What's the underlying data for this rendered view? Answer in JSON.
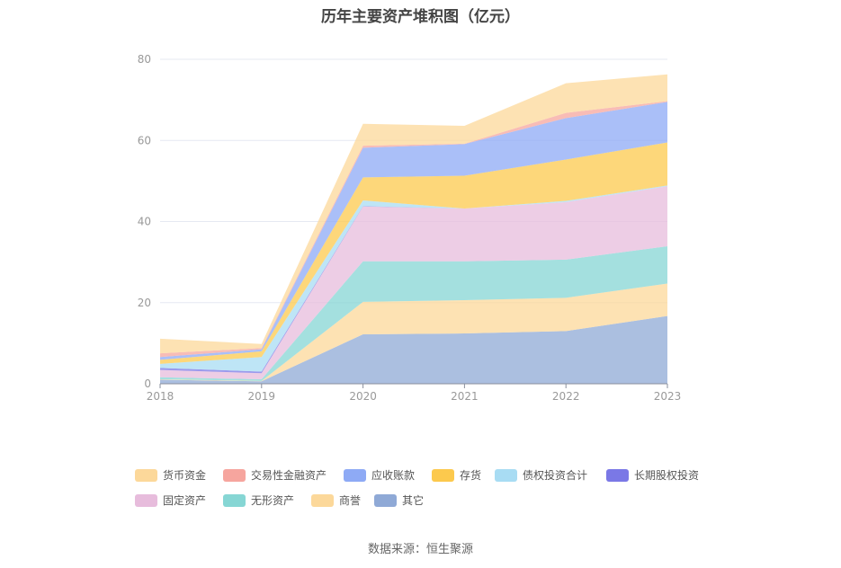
{
  "chart_data": {
    "type": "area",
    "stacked": true,
    "title": "历年主要资产堆积图（亿元）",
    "categories": [
      "2018",
      "2019",
      "2020",
      "2021",
      "2022",
      "2023"
    ],
    "ylim": [
      0,
      80
    ],
    "yticks": [
      0,
      20,
      40,
      60,
      80
    ],
    "grid": true,
    "legend_position": "bottom",
    "series": [
      {
        "name": "其它",
        "color": "#8fa9d6",
        "values": [
          1.0,
          0.6,
          12.2,
          12.4,
          13.0,
          16.7
        ]
      },
      {
        "name": "商誉",
        "color": "#fcd89a",
        "values": [
          0.1,
          0.1,
          8.0,
          8.2,
          8.2,
          8.0
        ]
      },
      {
        "name": "无形资产",
        "color": "#86d6d4",
        "values": [
          0.5,
          0.4,
          10.0,
          9.6,
          9.4,
          9.2
        ]
      },
      {
        "name": "固定资产",
        "color": "#e7bcdc",
        "values": [
          1.8,
          1.5,
          13.5,
          13.0,
          14.2,
          14.8
        ]
      },
      {
        "name": "长期股权投资",
        "color": "#7a78e6",
        "values": [
          0.5,
          0.4,
          0.1,
          0.0,
          0.0,
          0.0
        ]
      },
      {
        "name": "债权投资合计",
        "color": "#a8dcf3",
        "values": [
          1.0,
          3.6,
          1.4,
          0.0,
          0.3,
          0.2
        ]
      },
      {
        "name": "存货",
        "color": "#fcc94d",
        "values": [
          1.0,
          1.4,
          5.7,
          8.1,
          10.2,
          10.6
        ]
      },
      {
        "name": "应收账款",
        "color": "#8eaaf5",
        "values": [
          0.7,
          0.5,
          7.3,
          7.8,
          10.2,
          10.0
        ]
      },
      {
        "name": "交易性金融资产",
        "color": "#f6a59e",
        "values": [
          0.9,
          0.3,
          0.5,
          0.1,
          1.3,
          0.2
        ]
      },
      {
        "name": "货币资金",
        "color": "#fcd89a",
        "values": [
          3.6,
          1.0,
          5.4,
          4.4,
          7.3,
          6.6
        ]
      }
    ],
    "legend_order": [
      "货币资金",
      "交易性金融资产",
      "应收账款",
      "存货",
      "债权投资合计",
      "长期股权投资",
      "固定资产",
      "无形资产",
      "商誉",
      "其它"
    ]
  },
  "source": "数据来源：恒生聚源"
}
